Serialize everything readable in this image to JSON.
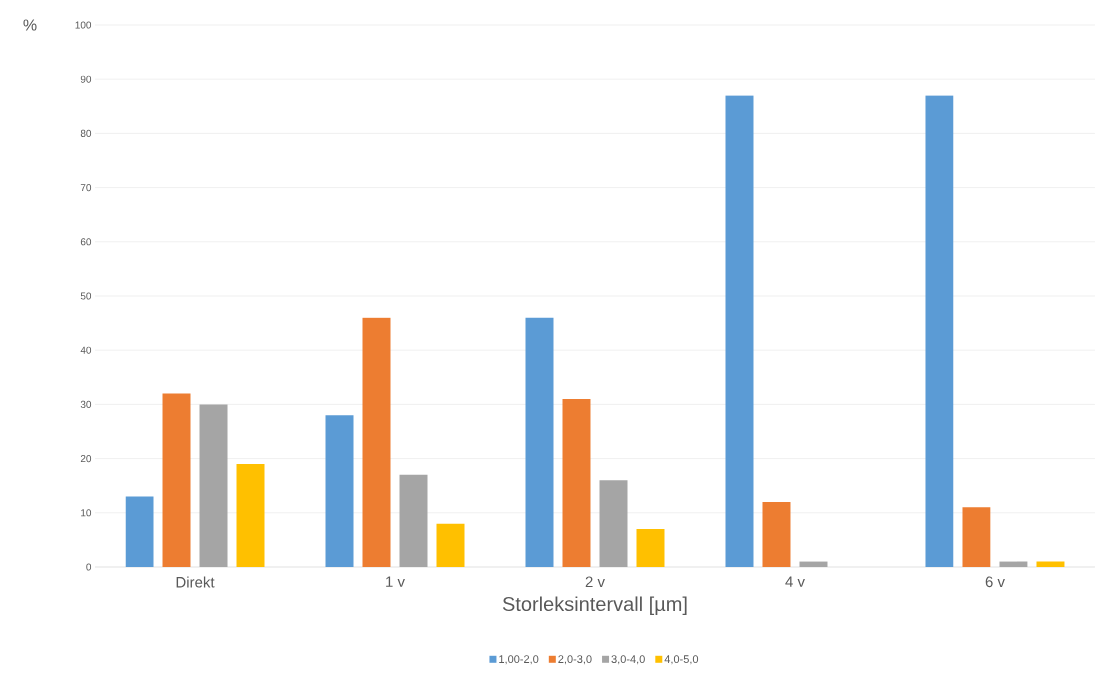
{
  "chart_data": {
    "type": "bar",
    "xlabel": "Storleksintervall [µm]",
    "ylabel": "%",
    "categories": [
      "Direkt",
      "1 v",
      "2 v",
      "4 v",
      "6 v"
    ],
    "series": [
      {
        "name": "1,00-2,0",
        "color": "#5b9bd5",
        "values": [
          13,
          28,
          46,
          87,
          87
        ]
      },
      {
        "name": "2,0-3,0",
        "color": "#ed7d31",
        "values": [
          32,
          46,
          31,
          12,
          11
        ]
      },
      {
        "name": "3,0-4,0",
        "color": "#a5a5a5",
        "values": [
          30,
          17,
          16,
          1,
          1
        ]
      },
      {
        "name": "4,0-5,0",
        "color": "#ffc000",
        "values": [
          19,
          8,
          7,
          0,
          1
        ]
      }
    ],
    "ylim": [
      0,
      100
    ],
    "yticks": [
      0,
      10,
      20,
      30,
      40,
      50,
      60,
      70,
      80,
      90,
      100
    ],
    "grid": "y",
    "legend": "bottom"
  }
}
